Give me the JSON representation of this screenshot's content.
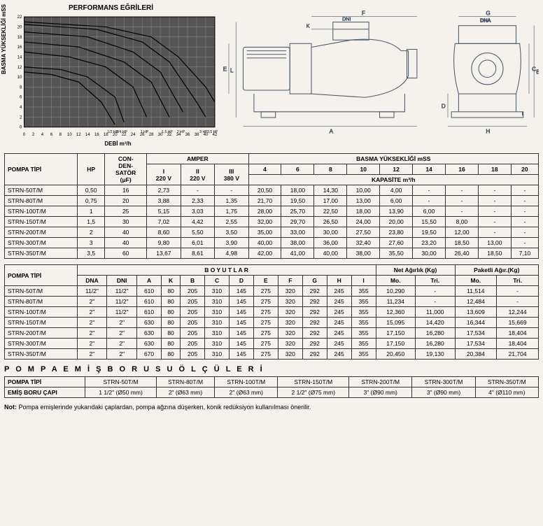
{
  "chart": {
    "title": "PERFORMANS EĞRİLERİ",
    "ylabel": "BASMA YÜKSEKLİĞİ mSS",
    "xlabel": "DEBİ m³/h",
    "xlim": [
      0,
      42
    ],
    "ylim": [
      0,
      22
    ],
    "xticks": [
      0,
      2,
      4,
      6,
      8,
      10,
      12,
      14,
      16,
      18,
      20,
      22,
      24,
      26,
      28,
      30,
      32,
      34,
      36,
      38,
      40,
      42
    ],
    "yticks": [
      0,
      2,
      4,
      6,
      8,
      10,
      12,
      14,
      16,
      18,
      20,
      22
    ],
    "bg": "#555555",
    "grid": "#888888",
    "line": "#000000",
    "curves": [
      {
        "label": "1/2 HP",
        "pts": [
          [
            0,
            11
          ],
          [
            6,
            10.5
          ],
          [
            12,
            9
          ],
          [
            17,
            5
          ],
          [
            20,
            0.5
          ]
        ]
      },
      {
        "label": "3/4 HP",
        "pts": [
          [
            0,
            12
          ],
          [
            8,
            11.5
          ],
          [
            14,
            10
          ],
          [
            20,
            6
          ],
          [
            22,
            1
          ]
        ]
      },
      {
        "label": "1 HP",
        "pts": [
          [
            0,
            15
          ],
          [
            10,
            14
          ],
          [
            18,
            12
          ],
          [
            24,
            8
          ],
          [
            27,
            2
          ]
        ]
      },
      {
        "label": "1,5 HP",
        "pts": [
          [
            0,
            17
          ],
          [
            12,
            16
          ],
          [
            22,
            13
          ],
          [
            28,
            9
          ],
          [
            32,
            2
          ]
        ]
      },
      {
        "label": "2 HP",
        "pts": [
          [
            0,
            19
          ],
          [
            14,
            18
          ],
          [
            24,
            15
          ],
          [
            30,
            11
          ],
          [
            35,
            3
          ]
        ]
      },
      {
        "label": "3 HP",
        "pts": [
          [
            0,
            20.5
          ],
          [
            16,
            19.5
          ],
          [
            26,
            17
          ],
          [
            32,
            13
          ],
          [
            38,
            5
          ],
          [
            40,
            2
          ]
        ]
      },
      {
        "label": "3,5 HP",
        "pts": [
          [
            0,
            21
          ],
          [
            18,
            20
          ],
          [
            28,
            18
          ],
          [
            34,
            14
          ],
          [
            40,
            8
          ],
          [
            42,
            5
          ]
        ]
      }
    ]
  },
  "diagram": {
    "labels": [
      "A",
      "B",
      "C",
      "D",
      "E",
      "F",
      "G",
      "H",
      "I",
      "K",
      "L",
      "DNI",
      "DNA"
    ]
  },
  "t1": {
    "h_pompa": "POMPA TİPİ",
    "h_hp": "HP",
    "h_cond": "CON-\nDEN-\nSATÖR\n(μF)",
    "h_amper": "AMPER",
    "h_basma": "BASMA YÜKSEKLİĞİ mSS",
    "h_kap": "KAPASİTE m³/h",
    "amper_cols": [
      "I\n220 V",
      "II\n220 V",
      "III\n380 V"
    ],
    "basma_cols": [
      "4",
      "6",
      "8",
      "10",
      "12",
      "14",
      "16",
      "18",
      "20"
    ],
    "rows": [
      {
        "m": "STRN-50T/M",
        "hp": "0,50",
        "c": "16",
        "a": [
          "2,73",
          "-",
          "-"
        ],
        "k": [
          "20,50",
          "18,00",
          "14,30",
          "10,00",
          "4,00",
          "-",
          "-",
          "-",
          "-"
        ]
      },
      {
        "m": "STRN-80T/M",
        "hp": "0,75",
        "c": "20",
        "a": [
          "3,88",
          "2,33",
          "1,35"
        ],
        "k": [
          "21,70",
          "19,50",
          "17,00",
          "13,00",
          "6,00",
          "-",
          "-",
          "-",
          "-"
        ]
      },
      {
        "m": "STRN-100T/M",
        "hp": "1",
        "c": "25",
        "a": [
          "5,15",
          "3,03",
          "1,75"
        ],
        "k": [
          "28,00",
          "25,70",
          "22,50",
          "18,00",
          "13,90",
          "6,00",
          "-",
          "-",
          "-"
        ]
      },
      {
        "m": "STRN-150T/M",
        "hp": "1,5",
        "c": "30",
        "a": [
          "7,02",
          "4,42",
          "2,55"
        ],
        "k": [
          "32,00",
          "29,70",
          "26,50",
          "24,00",
          "20,00",
          "15,50",
          "8,00",
          "-",
          "-"
        ]
      },
      {
        "m": "STRN-200T/M",
        "hp": "2",
        "c": "40",
        "a": [
          "8,60",
          "5,50",
          "3,50"
        ],
        "k": [
          "35,00",
          "33,00",
          "30,00",
          "27,50",
          "23,80",
          "19,50",
          "12,00",
          "-",
          "-"
        ]
      },
      {
        "m": "STRN-300T/M",
        "hp": "3",
        "c": "40",
        "a": [
          "9,80",
          "6,01",
          "3,90"
        ],
        "k": [
          "40,00",
          "38,00",
          "36,00",
          "32,40",
          "27,60",
          "23,20",
          "18,50",
          "13,00",
          "-"
        ]
      },
      {
        "m": "STRN-350T/M",
        "hp": "3,5",
        "c": "60",
        "a": [
          "13,67",
          "8,61",
          "4,98"
        ],
        "k": [
          "42,00",
          "41,00",
          "40,00",
          "38,00",
          "35,50",
          "30,00",
          "26,40",
          "18,50",
          "7,10"
        ]
      }
    ]
  },
  "t2": {
    "h_pompa": "POMPA TİPİ",
    "h_boy": "B O Y U T L A R",
    "h_net": "Net Ağırlık (Kg)",
    "h_pak": "Paketli Ağır.(Kg)",
    "dim_cols": [
      "DNA",
      "DNI",
      "A",
      "K",
      "B",
      "C",
      "D",
      "E",
      "F",
      "G",
      "H",
      "I"
    ],
    "wt_cols": [
      "Mo.",
      "Tri.",
      "Mo.",
      "Tri."
    ],
    "rows": [
      {
        "m": "STRN-50T/M",
        "d": [
          "11/2\"",
          "11/2\"",
          "610",
          "80",
          "205",
          "310",
          "145",
          "275",
          "320",
          "292",
          "245",
          "355"
        ],
        "w": [
          "10,290",
          "-",
          "11,514",
          "-"
        ]
      },
      {
        "m": "STRN-80T/M",
        "d": [
          "2\"",
          "11/2\"",
          "610",
          "80",
          "205",
          "310",
          "145",
          "275",
          "320",
          "292",
          "245",
          "355"
        ],
        "w": [
          "11,234",
          "-",
          "12,484",
          "-"
        ]
      },
      {
        "m": "STRN-100T/M",
        "d": [
          "2\"",
          "11/2\"",
          "610",
          "80",
          "205",
          "310",
          "145",
          "275",
          "320",
          "292",
          "245",
          "355"
        ],
        "w": [
          "12,360",
          "11,000",
          "13,609",
          "12,244"
        ]
      },
      {
        "m": "STRN-150T/M",
        "d": [
          "2\"",
          "2\"",
          "630",
          "80",
          "205",
          "310",
          "145",
          "275",
          "320",
          "292",
          "245",
          "355"
        ],
        "w": [
          "15,095",
          "14,420",
          "16,344",
          "15,669"
        ]
      },
      {
        "m": "STRN-200T/M",
        "d": [
          "2\"",
          "2\"",
          "630",
          "80",
          "205",
          "310",
          "145",
          "275",
          "320",
          "292",
          "245",
          "355"
        ],
        "w": [
          "17,150",
          "16,280",
          "17,534",
          "18,404"
        ]
      },
      {
        "m": "STRN-300T/M",
        "d": [
          "2\"",
          "2\"",
          "630",
          "80",
          "205",
          "310",
          "145",
          "275",
          "320",
          "292",
          "245",
          "355"
        ],
        "w": [
          "17,150",
          "16,280",
          "17,534",
          "18,404"
        ]
      },
      {
        "m": "STRN-350T/M",
        "d": [
          "2\"",
          "2\"",
          "670",
          "80",
          "205",
          "310",
          "145",
          "275",
          "320",
          "292",
          "245",
          "355"
        ],
        "w": [
          "20,450",
          "19,130",
          "20,384",
          "21,704"
        ]
      }
    ]
  },
  "t3": {
    "title": "P O M P A   E M İ Ş   B O R U S U   Ö L Ç Ü L E R İ",
    "h_pompa": "POMPA TİPİ",
    "h_cap": "EMİŞ BORU ÇAPI",
    "models": [
      "STRN-50T/M",
      "STRN-80T/M",
      "STRN-100T/M",
      "STRN-150T/M",
      "STRN-200T/M",
      "STRN-300T/M",
      "STRN-350T/M"
    ],
    "caps": [
      "1 1/2\" (Ø50 mm)",
      "2\" (Ø63 mm)",
      "2\" (Ø63 mm)",
      "2 1/2\" (Ø75 mm)",
      "3\" (Ø90 mm)",
      "3\" (Ø90 mm)",
      "4\" (Ø110 mm)"
    ]
  },
  "note": {
    "label": "Not:",
    "text": " Pompa emişlerinde yukarıdaki çaplardan, pompa ağzına düşerken, konik redüksiyon kullanılması önerilir."
  }
}
